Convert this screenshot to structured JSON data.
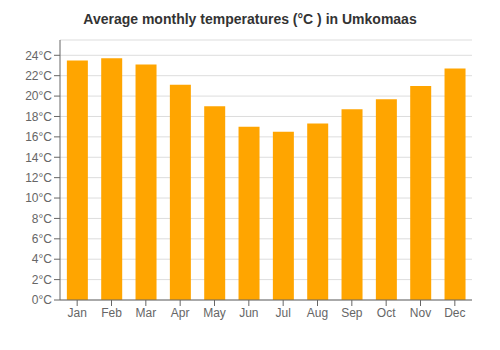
{
  "chart_data": {
    "type": "bar",
    "title": "Average monthly temperatures (°C ) in Umkomaas",
    "categories": [
      "Jan",
      "Feb",
      "Mar",
      "Apr",
      "May",
      "Jun",
      "Jul",
      "Aug",
      "Sep",
      "Oct",
      "Nov",
      "Dec"
    ],
    "values": [
      23.5,
      23.7,
      23.1,
      21.1,
      19.0,
      17.0,
      16.5,
      17.3,
      18.7,
      19.7,
      21.0,
      22.7
    ],
    "color": "#FFA500",
    "ylim": [
      0,
      25.5
    ],
    "yticks": [
      {
        "value": 0,
        "label": "0°C"
      },
      {
        "value": 2,
        "label": "2°C"
      },
      {
        "value": 4,
        "label": "4°C"
      },
      {
        "value": 6,
        "label": "6°C"
      },
      {
        "value": 8,
        "label": "8°C"
      },
      {
        "value": 10,
        "label": "10°C"
      },
      {
        "value": 12,
        "label": "12°C"
      },
      {
        "value": 14,
        "label": "14°C"
      },
      {
        "value": 16,
        "label": "16°C"
      },
      {
        "value": 18,
        "label": "18°C"
      },
      {
        "value": 20,
        "label": "20°C"
      },
      {
        "value": 22,
        "label": "22°C"
      },
      {
        "value": 24,
        "label": "24°C"
      }
    ],
    "grid": true
  }
}
